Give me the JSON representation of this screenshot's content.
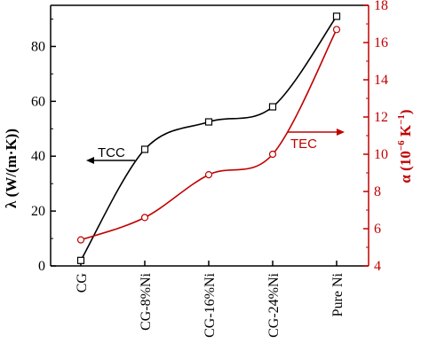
{
  "chart_data": {
    "type": "line",
    "categories": [
      "CG",
      "CG-8%Ni",
      "CG-16%Ni",
      "CG-24%Ni",
      "Pure Ni"
    ],
    "title": "",
    "xlabel": "",
    "y_left": {
      "label": "λ (W/(m·K))",
      "lim": [
        0,
        95
      ],
      "ticks": [
        0,
        20,
        40,
        60,
        80
      ],
      "color": "#000000"
    },
    "y_right": {
      "label_main": "α (10",
      "label_sup": "−6",
      "label_tail": " K",
      "label_sup2": "−1",
      "label_end": ")",
      "lim": [
        4,
        18
      ],
      "ticks": [
        4,
        6,
        8,
        10,
        12,
        14,
        16,
        18
      ],
      "color": "#c00000"
    },
    "series": [
      {
        "name": "TCC",
        "axis": "left",
        "color": "#000000",
        "marker": "square",
        "values": [
          2.0,
          42.5,
          52.5,
          58.0,
          91.0
        ]
      },
      {
        "name": "TEC",
        "axis": "right",
        "color": "#c00000",
        "marker": "circle",
        "values": [
          5.4,
          6.6,
          8.9,
          10.0,
          16.7
        ]
      }
    ],
    "annotations": [
      {
        "text": "TCC",
        "arrow": "left",
        "color": "#000000"
      },
      {
        "text": "TEC",
        "arrow": "right",
        "color": "#c00000"
      }
    ],
    "grid": false,
    "legend": "none"
  }
}
